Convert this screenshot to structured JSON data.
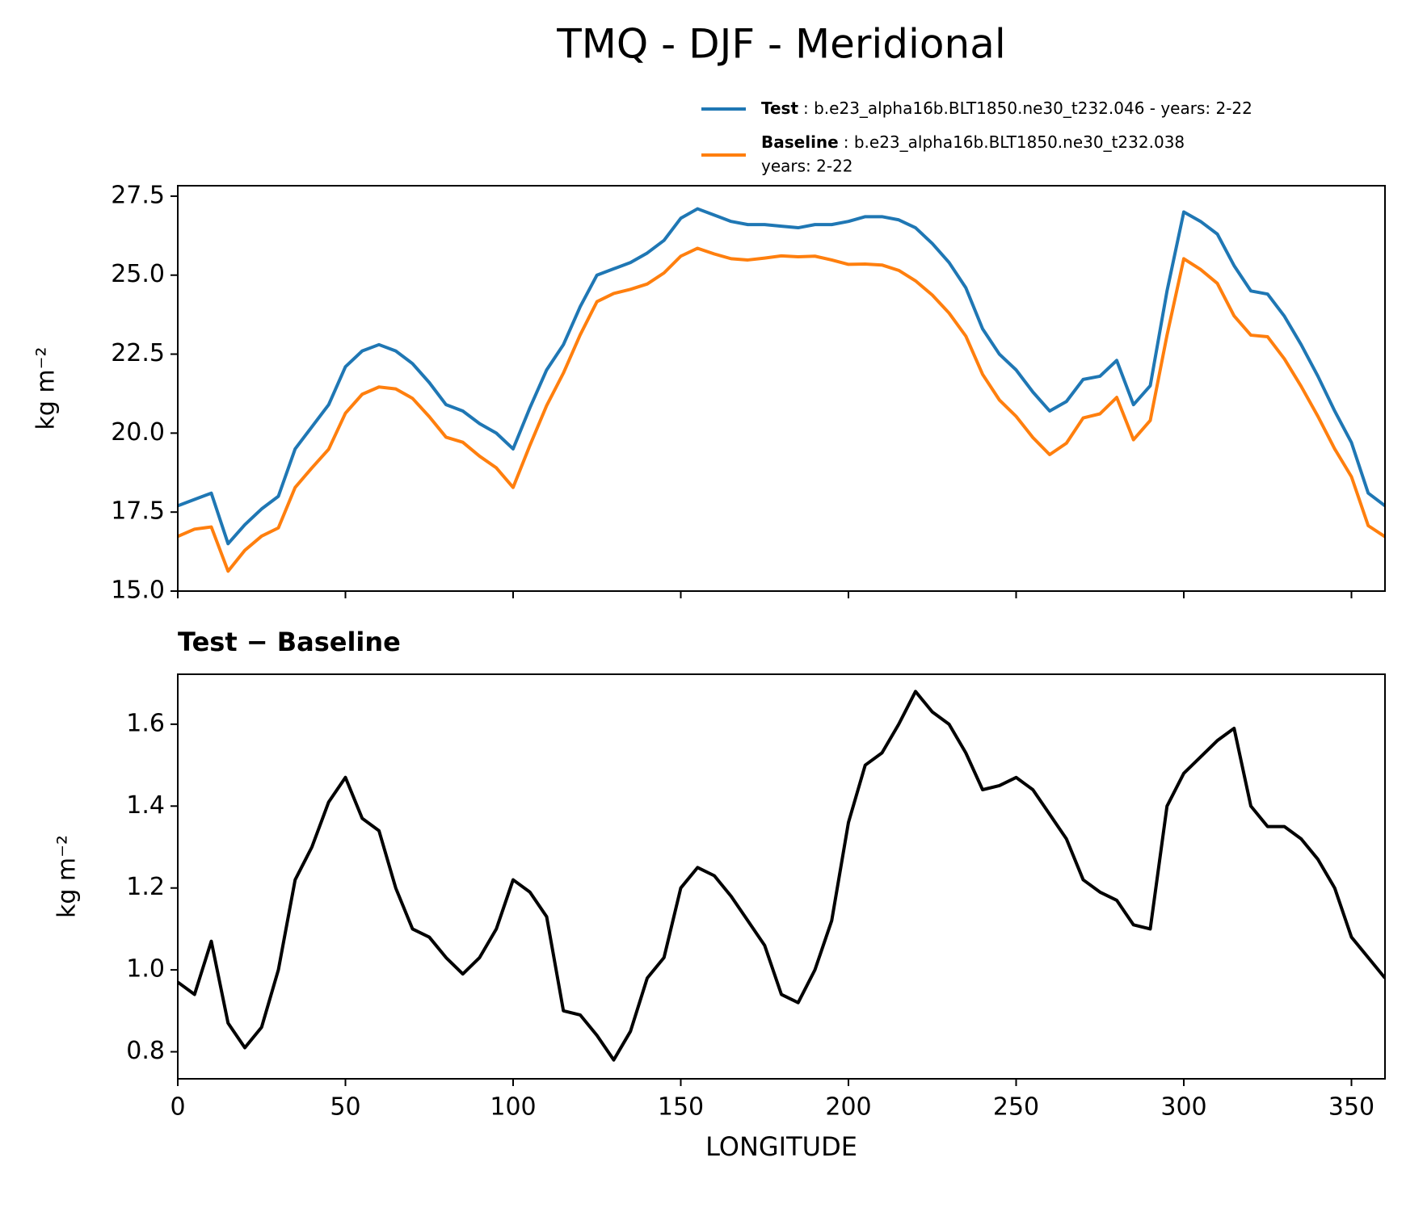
{
  "chart_data": [
    {
      "type": "line",
      "title": "TMQ - DJF - Meridional",
      "ylabel": "kg m⁻²",
      "x": [
        0,
        5,
        10,
        15,
        20,
        25,
        30,
        35,
        40,
        45,
        50,
        55,
        60,
        65,
        70,
        75,
        80,
        85,
        90,
        95,
        100,
        105,
        110,
        115,
        120,
        125,
        130,
        135,
        140,
        145,
        150,
        155,
        160,
        165,
        170,
        175,
        180,
        185,
        190,
        195,
        200,
        205,
        210,
        215,
        220,
        225,
        230,
        235,
        240,
        245,
        250,
        255,
        260,
        265,
        270,
        275,
        280,
        285,
        290,
        295,
        300,
        305,
        310,
        315,
        320,
        325,
        330,
        335,
        340,
        345,
        350,
        355,
        360
      ],
      "series": [
        {
          "name": "Test",
          "label_lines": [
            ": b.e23_alpha16b.BLT1850.ne30_t232.046 - years: 2-22"
          ],
          "color": "#1f77b4",
          "values": [
            17.7,
            17.9,
            18.1,
            16.5,
            17.1,
            17.6,
            18.0,
            19.5,
            20.2,
            20.9,
            22.1,
            22.6,
            22.8,
            22.6,
            22.2,
            21.6,
            20.9,
            20.7,
            20.3,
            20.0,
            19.5,
            20.8,
            22.0,
            22.8,
            24.0,
            25.0,
            25.2,
            25.4,
            25.7,
            26.1,
            26.8,
            27.1,
            26.9,
            26.7,
            26.6,
            26.6,
            26.55,
            26.5,
            26.6,
            26.6,
            26.7,
            26.85,
            26.85,
            26.75,
            26.5,
            26.0,
            25.4,
            24.6,
            23.3,
            22.5,
            22.0,
            21.3,
            20.7,
            21.0,
            21.7,
            21.8,
            22.3,
            20.9,
            21.5,
            24.5,
            27.0,
            26.7,
            26.3,
            25.3,
            24.5,
            24.4,
            23.7,
            22.8,
            21.8,
            20.7,
            19.7,
            18.1,
            17.7
          ]
        },
        {
          "name": "Baseline",
          "label_lines": [
            ": b.e23_alpha16b.BLT1850.ne30_t232.038",
            "years: 2-22"
          ],
          "color": "#ff7f0e",
          "values": [
            16.73,
            16.96,
            17.03,
            15.63,
            16.29,
            16.74,
            17.0,
            18.28,
            18.9,
            19.49,
            20.63,
            21.23,
            21.46,
            21.4,
            21.1,
            20.52,
            19.87,
            19.71,
            19.27,
            18.9,
            18.28,
            19.61,
            20.87,
            21.9,
            23.11,
            24.16,
            24.42,
            24.55,
            24.72,
            25.07,
            25.6,
            25.85,
            25.67,
            25.52,
            25.48,
            25.54,
            25.61,
            25.58,
            25.6,
            25.48,
            25.34,
            25.35,
            25.32,
            25.15,
            24.82,
            24.37,
            23.8,
            23.07,
            21.86,
            21.05,
            20.53,
            19.86,
            19.32,
            19.68,
            20.48,
            20.61,
            21.13,
            19.79,
            20.4,
            23.1,
            25.52,
            25.18,
            24.74,
            23.71,
            23.1,
            23.05,
            22.35,
            21.48,
            20.53,
            19.5,
            18.62,
            17.07,
            16.72
          ]
        }
      ],
      "xlim": [
        0,
        360
      ],
      "xticks": [
        0,
        50,
        100,
        150,
        200,
        250,
        300,
        350
      ],
      "ylim": [
        15,
        27.83
      ],
      "yticks": [
        {
          "value": 15,
          "label": "15.0"
        },
        17.5,
        {
          "value": 20,
          "label": "20.0"
        },
        22.5,
        {
          "value": 25,
          "label": "25.0"
        },
        27.5
      ]
    },
    {
      "type": "line",
      "title": "Test − Baseline",
      "xlabel": "LONGITUDE",
      "ylabel": "kg m⁻²",
      "x": [
        0,
        5,
        10,
        15,
        20,
        25,
        30,
        35,
        40,
        45,
        50,
        55,
        60,
        65,
        70,
        75,
        80,
        85,
        90,
        95,
        100,
        105,
        110,
        115,
        120,
        125,
        130,
        135,
        140,
        145,
        150,
        155,
        160,
        165,
        170,
        175,
        180,
        185,
        190,
        195,
        200,
        205,
        210,
        215,
        220,
        225,
        230,
        235,
        240,
        245,
        250,
        255,
        260,
        265,
        270,
        275,
        280,
        285,
        290,
        295,
        300,
        305,
        310,
        315,
        320,
        325,
        330,
        335,
        340,
        345,
        350,
        355,
        360
      ],
      "series": [
        {
          "color": "#000000",
          "values": [
            0.97,
            0.94,
            1.07,
            0.87,
            0.81,
            0.86,
            1.0,
            1.22,
            1.3,
            1.41,
            1.47,
            1.37,
            1.34,
            1.2,
            1.1,
            1.08,
            1.03,
            0.99,
            1.03,
            1.1,
            1.22,
            1.19,
            1.13,
            0.9,
            0.89,
            0.84,
            0.78,
            0.85,
            0.98,
            1.03,
            1.2,
            1.25,
            1.23,
            1.18,
            1.12,
            1.06,
            0.94,
            0.92,
            1.0,
            1.12,
            1.36,
            1.5,
            1.53,
            1.6,
            1.68,
            1.63,
            1.6,
            1.53,
            1.44,
            1.45,
            1.47,
            1.44,
            1.38,
            1.32,
            1.22,
            1.19,
            1.17,
            1.11,
            1.1,
            1.4,
            1.48,
            1.52,
            1.56,
            1.59,
            1.4,
            1.35,
            1.35,
            1.32,
            1.27,
            1.2,
            1.08,
            1.03,
            0.98
          ]
        }
      ],
      "xlim": [
        0,
        360
      ],
      "xticks": [
        0,
        50,
        100,
        150,
        200,
        250,
        300,
        350
      ],
      "ylim": [
        0.734,
        1.722
      ],
      "yticks": [
        0.8,
        {
          "value": 1,
          "label": "1.0"
        },
        1.2,
        1.4,
        1.6
      ]
    }
  ]
}
